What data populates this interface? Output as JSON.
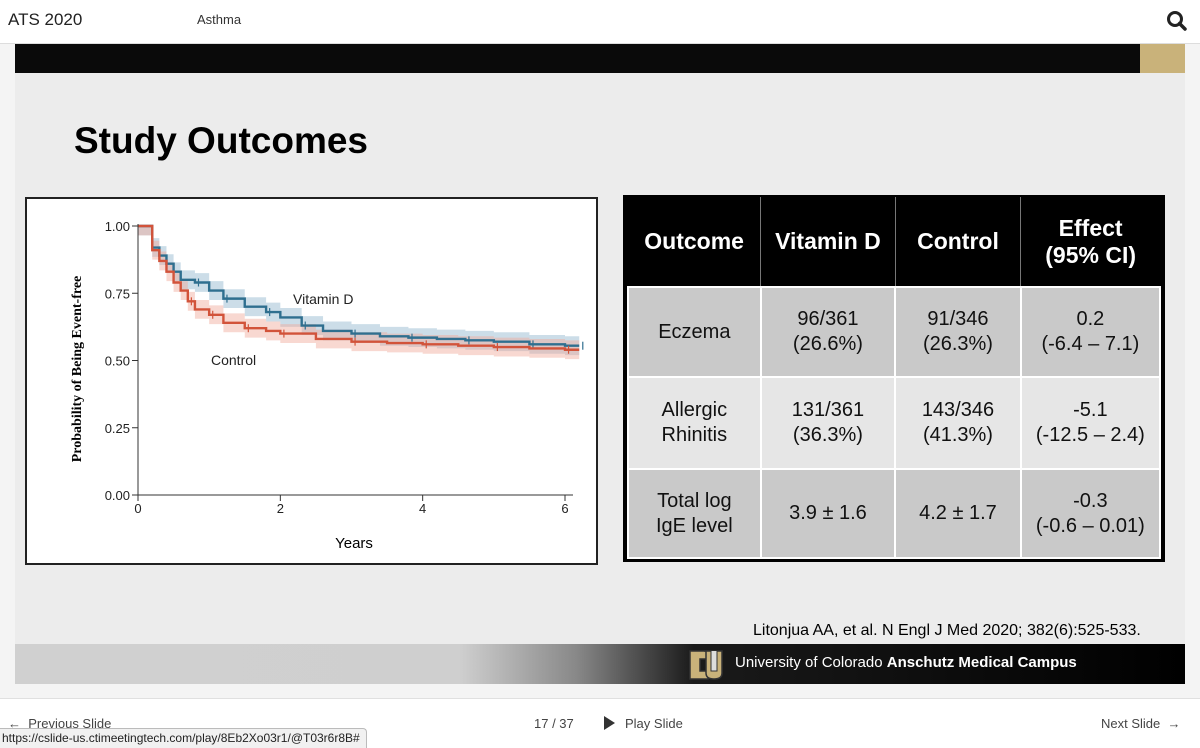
{
  "app": {
    "title": "ATS 2020",
    "topic": "Asthma"
  },
  "slide": {
    "title": "Study Outcomes",
    "citation": "Litonjua AA, et al. N Engl J Med 2020; 382(6):525-533.",
    "university_regular": "University of Colorado",
    "university_bold": "Anschutz Medical Campus"
  },
  "chart_data": {
    "type": "line",
    "xlabel": "Years",
    "ylabel": "Probability of Being Event-free",
    "x_ticks": [
      "0",
      "2",
      "4",
      "6"
    ],
    "y_ticks": [
      "0.00",
      "0.25",
      "0.50",
      "0.75",
      "1.00"
    ],
    "xlim": [
      0,
      6
    ],
    "ylim": [
      0,
      1
    ],
    "series": [
      {
        "name": "Vitamin D",
        "color": "#2f6f8f",
        "band_color": "#8fb4cc",
        "points": [
          [
            0,
            1.0
          ],
          [
            0.15,
            1.0
          ],
          [
            0.2,
            0.92
          ],
          [
            0.3,
            0.89
          ],
          [
            0.4,
            0.86
          ],
          [
            0.5,
            0.83
          ],
          [
            0.6,
            0.8
          ],
          [
            0.8,
            0.79
          ],
          [
            1.0,
            0.76
          ],
          [
            1.2,
            0.73
          ],
          [
            1.5,
            0.7
          ],
          [
            1.8,
            0.68
          ],
          [
            2.0,
            0.66
          ],
          [
            2.3,
            0.63
          ],
          [
            2.6,
            0.61
          ],
          [
            3.0,
            0.6
          ],
          [
            3.4,
            0.59
          ],
          [
            3.8,
            0.585
          ],
          [
            4.2,
            0.58
          ],
          [
            4.6,
            0.575
          ],
          [
            5.0,
            0.57
          ],
          [
            5.5,
            0.56
          ],
          [
            6.0,
            0.555
          ],
          [
            6.2,
            0.555
          ]
        ]
      },
      {
        "name": "Control",
        "color": "#d2533a",
        "band_color": "#f0a898",
        "points": [
          [
            0,
            1.0
          ],
          [
            0.15,
            1.0
          ],
          [
            0.2,
            0.91
          ],
          [
            0.3,
            0.87
          ],
          [
            0.4,
            0.83
          ],
          [
            0.5,
            0.79
          ],
          [
            0.6,
            0.76
          ],
          [
            0.7,
            0.72
          ],
          [
            0.8,
            0.69
          ],
          [
            1.0,
            0.67
          ],
          [
            1.2,
            0.64
          ],
          [
            1.5,
            0.62
          ],
          [
            1.8,
            0.61
          ],
          [
            2.0,
            0.6
          ],
          [
            2.5,
            0.58
          ],
          [
            3.0,
            0.57
          ],
          [
            3.5,
            0.565
          ],
          [
            4.0,
            0.56
          ],
          [
            4.5,
            0.555
          ],
          [
            5.0,
            0.55
          ],
          [
            5.5,
            0.545
          ],
          [
            6.0,
            0.54
          ],
          [
            6.2,
            0.54
          ]
        ]
      }
    ]
  },
  "table": {
    "headers": [
      "Outcome",
      "Vitamin D",
      "Control",
      "Effect\n(95% CI)"
    ],
    "rows": [
      {
        "outcome": "Eczema",
        "vitamin_d": "96/361\n(26.6%)",
        "control": "91/346\n(26.3%)",
        "effect": "0.2\n(-6.4 – 7.1)"
      },
      {
        "outcome": "Allergic\nRhinitis",
        "vitamin_d": "131/361\n(36.3%)",
        "control": "143/346\n(41.3%)",
        "effect": "-5.1\n(-12.5 – 2.4)"
      },
      {
        "outcome": "Total log\nIgE level",
        "vitamin_d": "3.9 ± 1.6",
        "control": "4.2 ± 1.7",
        "effect": "-0.3\n(-0.6 – 0.01)"
      }
    ]
  },
  "navigation": {
    "prev_label": "Previous Slide",
    "counter": "17 / 37",
    "play_label": "Play Slide",
    "next_label": "Next Slide"
  },
  "status": {
    "url": "https://cslide-us.ctimeetingtech.com/play/8Eb2Xo03r1/@T03r6r8B#"
  },
  "icons": {
    "search": "magnifier-icon",
    "prev": "arrow-left-icon",
    "next": "arrow-right-icon",
    "play": "play-triangle-icon"
  }
}
